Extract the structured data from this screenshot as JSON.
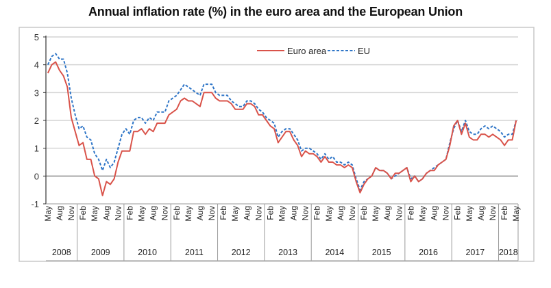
{
  "chart_data": {
    "type": "line",
    "title": "Annual inflation rate (%) in the euro area and the European Union",
    "xlabel": "",
    "ylabel": "",
    "ylim": [
      -1,
      5
    ],
    "yticks": [
      -1,
      0,
      1,
      2,
      3,
      4,
      5
    ],
    "grid": true,
    "legend_position": "top-center",
    "x_start": "2008-05",
    "x_end": "2018-05",
    "month_tick_labels": [
      "May",
      "Aug",
      "Nov",
      "Feb",
      "May",
      "Aug",
      "Nov",
      "Feb",
      "May",
      "Aug",
      "Nov",
      "Feb",
      "May",
      "Aug",
      "Nov",
      "Feb",
      "May",
      "Aug",
      "Nov",
      "Feb",
      "May",
      "Aug",
      "Nov",
      "Feb",
      "May",
      "Aug",
      "Nov",
      "Feb",
      "May",
      "Aug",
      "Nov",
      "Feb",
      "May",
      "Aug",
      "Nov",
      "Feb",
      "May",
      "Aug",
      "Nov",
      "Feb",
      "May"
    ],
    "years": [
      "2008",
      "2009",
      "2010",
      "2011",
      "2012",
      "2013",
      "2014",
      "2015",
      "2016",
      "2017",
      "2018"
    ],
    "series": [
      {
        "name": "Euro area",
        "color": "#d9534a",
        "style": "solid",
        "values": [
          3.7,
          4.0,
          4.1,
          3.8,
          3.6,
          3.2,
          2.1,
          1.6,
          1.1,
          1.2,
          0.6,
          0.6,
          0.0,
          -0.1,
          -0.7,
          -0.2,
          -0.3,
          -0.1,
          0.5,
          0.9,
          0.9,
          0.9,
          1.6,
          1.6,
          1.7,
          1.5,
          1.7,
          1.6,
          1.9,
          1.9,
          1.9,
          2.2,
          2.3,
          2.4,
          2.7,
          2.8,
          2.7,
          2.7,
          2.6,
          2.5,
          3.0,
          3.0,
          3.0,
          2.8,
          2.7,
          2.7,
          2.7,
          2.6,
          2.4,
          2.4,
          2.4,
          2.6,
          2.6,
          2.5,
          2.2,
          2.2,
          2.0,
          1.8,
          1.7,
          1.2,
          1.4,
          1.6,
          1.6,
          1.3,
          1.1,
          0.7,
          0.9,
          0.8,
          0.8,
          0.7,
          0.5,
          0.7,
          0.5,
          0.5,
          0.4,
          0.4,
          0.3,
          0.4,
          0.3,
          -0.2,
          -0.6,
          -0.3,
          -0.1,
          0.0,
          0.3,
          0.2,
          0.2,
          0.1,
          -0.1,
          0.1,
          0.1,
          0.2,
          0.3,
          -0.2,
          0.0,
          -0.2,
          -0.1,
          0.1,
          0.2,
          0.2,
          0.4,
          0.5,
          0.6,
          1.1,
          1.8,
          2.0,
          1.5,
          1.9,
          1.4,
          1.3,
          1.3,
          1.5,
          1.5,
          1.4,
          1.5,
          1.4,
          1.3,
          1.1,
          1.3,
          1.3,
          2.0
        ]
      },
      {
        "name": "EU",
        "color": "#2e75c7",
        "style": "dashed",
        "values": [
          4.0,
          4.3,
          4.4,
          4.2,
          4.2,
          3.7,
          2.8,
          2.2,
          1.7,
          1.8,
          1.4,
          1.3,
          0.8,
          0.6,
          0.2,
          0.6,
          0.3,
          0.5,
          1.0,
          1.5,
          1.7,
          1.5,
          2.0,
          2.1,
          2.1,
          1.9,
          2.1,
          2.0,
          2.3,
          2.3,
          2.3,
          2.7,
          2.8,
          2.9,
          3.1,
          3.3,
          3.2,
          3.1,
          3.0,
          2.9,
          3.3,
          3.3,
          3.3,
          3.0,
          2.9,
          2.9,
          2.9,
          2.7,
          2.6,
          2.5,
          2.5,
          2.7,
          2.7,
          2.6,
          2.4,
          2.3,
          2.1,
          2.0,
          1.9,
          1.4,
          1.6,
          1.7,
          1.7,
          1.5,
          1.3,
          0.9,
          1.0,
          1.0,
          0.9,
          0.8,
          0.6,
          0.8,
          0.6,
          0.7,
          0.5,
          0.5,
          0.4,
          0.5,
          0.4,
          -0.1,
          -0.5,
          -0.2,
          -0.1,
          0.0,
          0.3,
          0.2,
          0.2,
          0.1,
          -0.1,
          0.0,
          0.1,
          0.2,
          0.3,
          -0.1,
          0.0,
          -0.2,
          -0.1,
          0.1,
          0.2,
          0.3,
          0.4,
          0.5,
          0.6,
          1.2,
          1.7,
          2.0,
          1.6,
          2.0,
          1.6,
          1.5,
          1.5,
          1.7,
          1.8,
          1.7,
          1.8,
          1.7,
          1.6,
          1.4,
          1.5,
          1.5,
          2.0
        ]
      }
    ]
  }
}
